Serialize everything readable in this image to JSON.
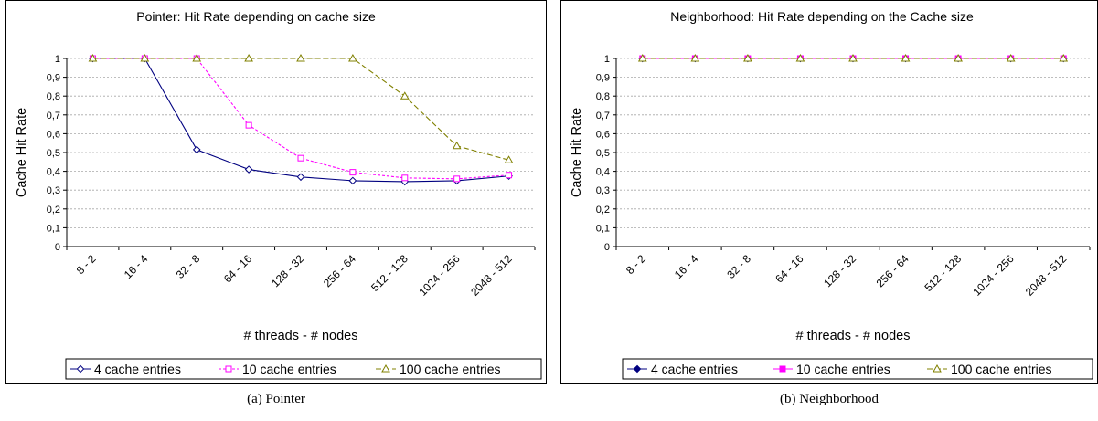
{
  "chart_data": [
    {
      "type": "line",
      "title": "Pointer: Hit Rate depending on cache size",
      "xlabel": "# threads - # nodes",
      "ylabel": "Cache Hit Rate",
      "categories": [
        "8 - 2",
        "16 - 4",
        "32 - 8",
        "64 - 16",
        "128 - 32",
        "256 - 64",
        "512 - 128",
        "1024 - 256",
        "2048 - 512"
      ],
      "yticks": [
        "0",
        "0,1",
        "0,2",
        "0,3",
        "0,4",
        "0,5",
        "0,6",
        "0,7",
        "0,8",
        "0,9",
        "1"
      ],
      "ylim": [
        0,
        1
      ],
      "grid": true,
      "legend_position": "bottom",
      "series": [
        {
          "name": "4 cache entries",
          "values": [
            1,
            1,
            0.515,
            0.41,
            0.37,
            0.35,
            0.345,
            0.35,
            0.375
          ],
          "color": "#000080",
          "dash": "",
          "marker": "diamond"
        },
        {
          "name": "10 cache entries",
          "values": [
            1,
            1,
            1,
            0.645,
            0.47,
            0.395,
            0.365,
            0.36,
            0.38
          ],
          "color": "#ff00ff",
          "dash": "3,2",
          "marker": "square-open"
        },
        {
          "name": "100 cache entries",
          "values": [
            1,
            1,
            1,
            1,
            1,
            1,
            0.8,
            0.535,
            0.46
          ],
          "color": "#808000",
          "dash": "6,3",
          "marker": "triangle-open"
        }
      ]
    },
    {
      "type": "line",
      "title": "Neighborhood: Hit Rate depending on the Cache size",
      "xlabel": "# threads - # nodes",
      "ylabel": "Cache Hit Rate",
      "categories": [
        "8 - 2",
        "16 - 4",
        "32 - 8",
        "64 - 16",
        "128 - 32",
        "256 - 64",
        "512 - 128",
        "1024 - 256",
        "2048 - 512"
      ],
      "yticks": [
        "0",
        "0,1",
        "0,2",
        "0,3",
        "0,4",
        "0,5",
        "0,6",
        "0,7",
        "0,8",
        "0,9",
        "1"
      ],
      "ylim": [
        0,
        1
      ],
      "grid": true,
      "legend_position": "bottom",
      "series": [
        {
          "name": "4 cache entries",
          "values": [
            1,
            1,
            1,
            1,
            1,
            1,
            1,
            1,
            1
          ],
          "color": "#000080",
          "dash": "",
          "marker": "diamond-filled"
        },
        {
          "name": "10 cache entries",
          "values": [
            1,
            1,
            1,
            1,
            1,
            1,
            1,
            1,
            1
          ],
          "color": "#ff00ff",
          "dash": "",
          "marker": "square-filled"
        },
        {
          "name": "100 cache entries",
          "values": [
            1,
            1,
            1,
            1,
            1,
            1,
            1,
            1,
            1
          ],
          "color": "#808000",
          "dash": "6,3",
          "marker": "triangle-open"
        }
      ]
    }
  ],
  "captions": [
    "(a) Pointer",
    "(b) Neighborhood"
  ]
}
